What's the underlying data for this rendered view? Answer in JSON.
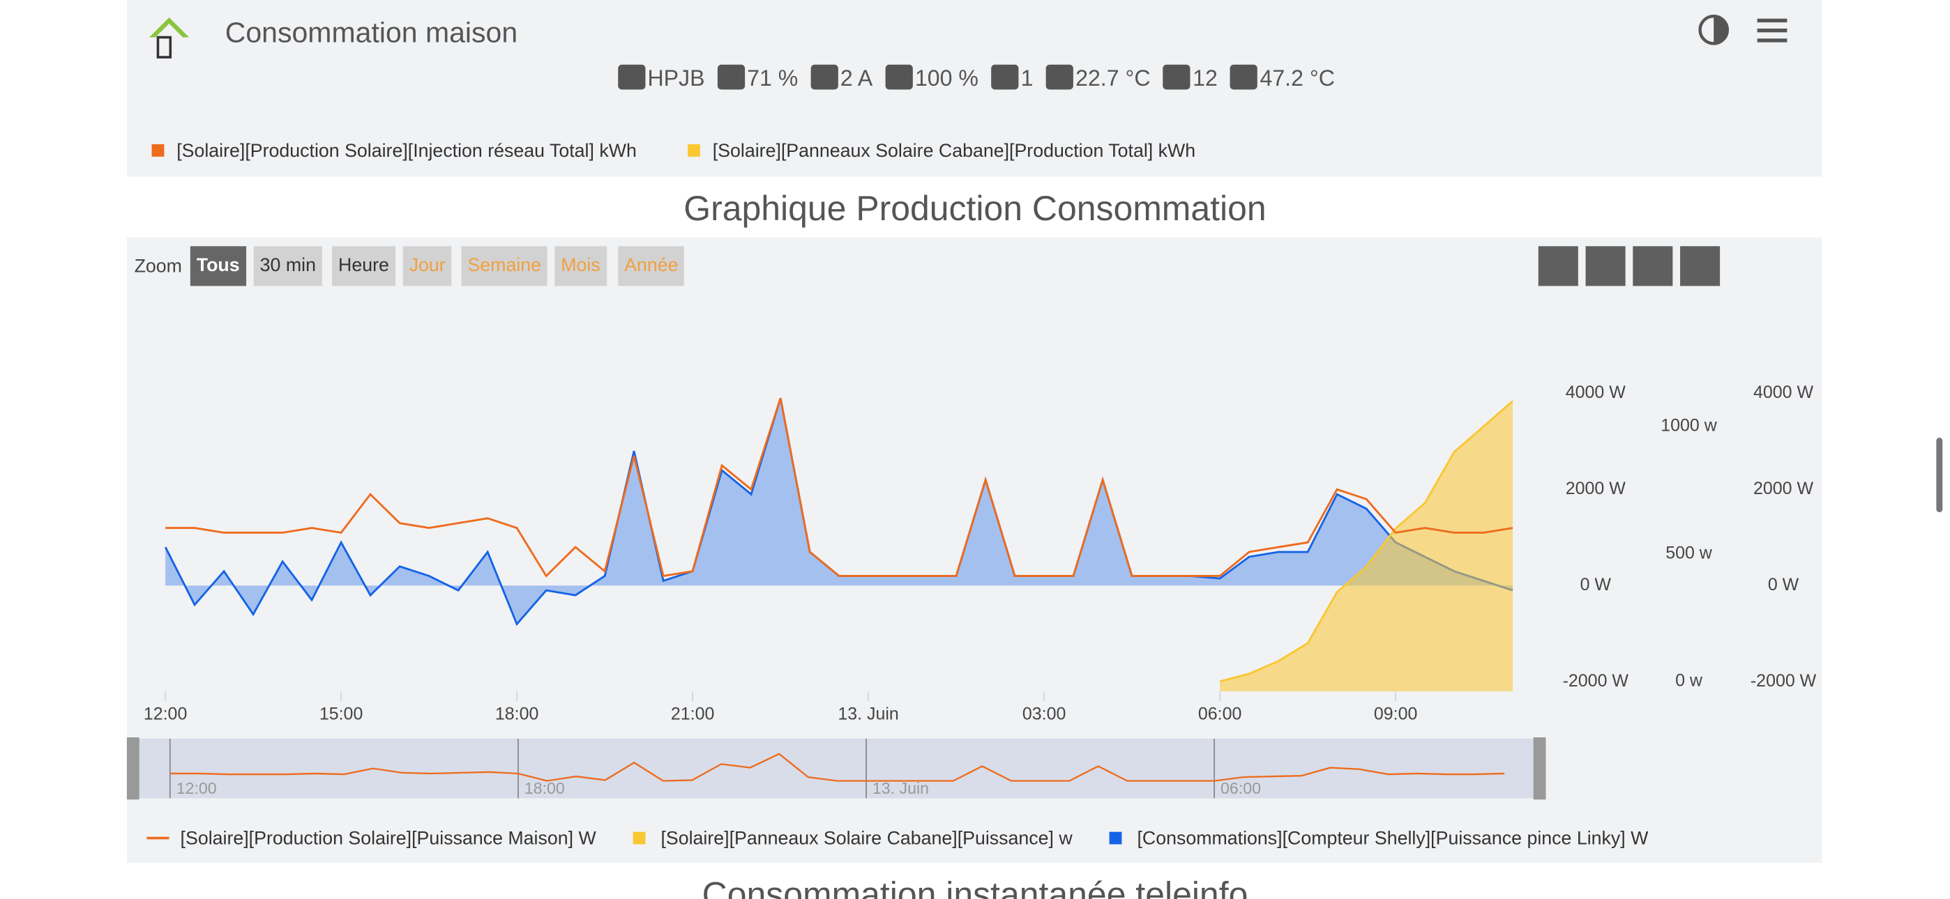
{
  "header": {
    "title": "Consommation maison",
    "status": [
      "HPJB",
      "71 %",
      "2 A",
      "100 %",
      "1",
      "22.7 °C",
      "12",
      "47.2 °C"
    ]
  },
  "top_legend": [
    "[Solaire][Production Solaire][Injection réseau Total] kWh",
    "[Solaire][Panneaux Solaire Cabane][Production Total] kWh"
  ],
  "section_title": "Graphique Production Consommation",
  "zoom": {
    "label": "Zoom",
    "buttons": [
      "Tous",
      "30 min",
      "Heure",
      "Jour",
      "Semaine",
      "Mois",
      "Année"
    ]
  },
  "chart_data": {
    "type": "line",
    "x": [
      12,
      12.5,
      13,
      13.5,
      14,
      14.5,
      15,
      15.5,
      16,
      16.5,
      17,
      17.5,
      18,
      18.5,
      19,
      19.5,
      20,
      20.5,
      21,
      21.5,
      22,
      22.5,
      23,
      23.5,
      24,
      24.5,
      25,
      25.5,
      26,
      26.5,
      27,
      27.5,
      28,
      28.5,
      29,
      29.5,
      30,
      30.5,
      31,
      31.5,
      32,
      32.5,
      33,
      33.5,
      34,
      34.5,
      35
    ],
    "xlim": [
      11.47,
      35.5
    ],
    "xticks": [
      {
        "value": 12,
        "label": "12:00"
      },
      {
        "value": 15,
        "label": "15:00"
      },
      {
        "value": 18,
        "label": "18:00"
      },
      {
        "value": 21,
        "label": "21:00"
      },
      {
        "value": 24,
        "label": "13. Juin"
      },
      {
        "value": 27,
        "label": "03:00"
      },
      {
        "value": 30,
        "label": "06:00"
      },
      {
        "value": 33,
        "label": "09:00"
      }
    ],
    "ylim": [
      -2200,
      6000
    ],
    "yticks": [
      {
        "value": -2000,
        "label": "-2000 W"
      },
      {
        "value": 0,
        "label": "0 W"
      },
      {
        "value": 2000,
        "label": "2000 W"
      },
      {
        "value": 4000,
        "label": "4000 W"
      }
    ],
    "y2lim": [
      -39,
      1507
    ],
    "y2ticks": [
      {
        "value": 0,
        "label": "0 w"
      },
      {
        "value": 500,
        "label": "500 w"
      },
      {
        "value": 1000,
        "label": "1000 w"
      }
    ],
    "y3lim": [
      -2200,
      6000
    ],
    "y3ticks": [
      {
        "value": -2000,
        "label": "-2000 W"
      },
      {
        "value": 0,
        "label": "0 W"
      },
      {
        "value": 2000,
        "label": "2000 W"
      },
      {
        "value": 4000,
        "label": "4000 W"
      }
    ],
    "series": [
      {
        "name": "[Solaire][Production Solaire][Puissance Maison] W",
        "color": "#ee6b1c",
        "axis": "y",
        "values": [
          1200,
          1200,
          1100,
          1100,
          1100,
          1200,
          1100,
          1900,
          1300,
          1200,
          1300,
          1400,
          1200,
          200,
          800,
          300,
          2700,
          200,
          300,
          2500,
          2000,
          3900,
          700,
          200,
          200,
          200,
          200,
          200,
          2200,
          200,
          200,
          200,
          2200,
          200,
          200,
          200,
          200,
          700,
          800,
          900,
          2000,
          1800,
          1100,
          1200,
          1100,
          1100,
          1200
        ]
      },
      {
        "name": "[Solaire][Panneaux Solaire Cabane][Puissance] w",
        "color": "#f9c732",
        "axis": "y2",
        "values": [
          null,
          null,
          null,
          null,
          null,
          null,
          null,
          null,
          null,
          null,
          null,
          null,
          null,
          null,
          null,
          null,
          null,
          null,
          null,
          null,
          null,
          null,
          null,
          null,
          null,
          null,
          null,
          null,
          null,
          null,
          null,
          null,
          null,
          null,
          null,
          null,
          0,
          30,
          80,
          150,
          350,
          450,
          600,
          700,
          900,
          1000,
          1100
        ]
      },
      {
        "name": "[Consommations][Compteur Shelly][Puissance pince Linky] W",
        "color": "#1463e6",
        "axis": "y",
        "values": [
          800,
          -400,
          300,
          -600,
          500,
          -300,
          900,
          -200,
          400,
          200,
          -100,
          700,
          -800,
          -100,
          -200,
          200,
          2800,
          100,
          300,
          2400,
          1900,
          3900,
          700,
          200,
          200,
          200,
          200,
          200,
          2200,
          200,
          200,
          200,
          2200,
          200,
          200,
          200,
          150,
          600,
          700,
          700,
          1900,
          1600,
          900,
          600,
          300,
          100,
          -100
        ]
      }
    ]
  },
  "next_section_title": "Consommation instantanée teleinfo"
}
